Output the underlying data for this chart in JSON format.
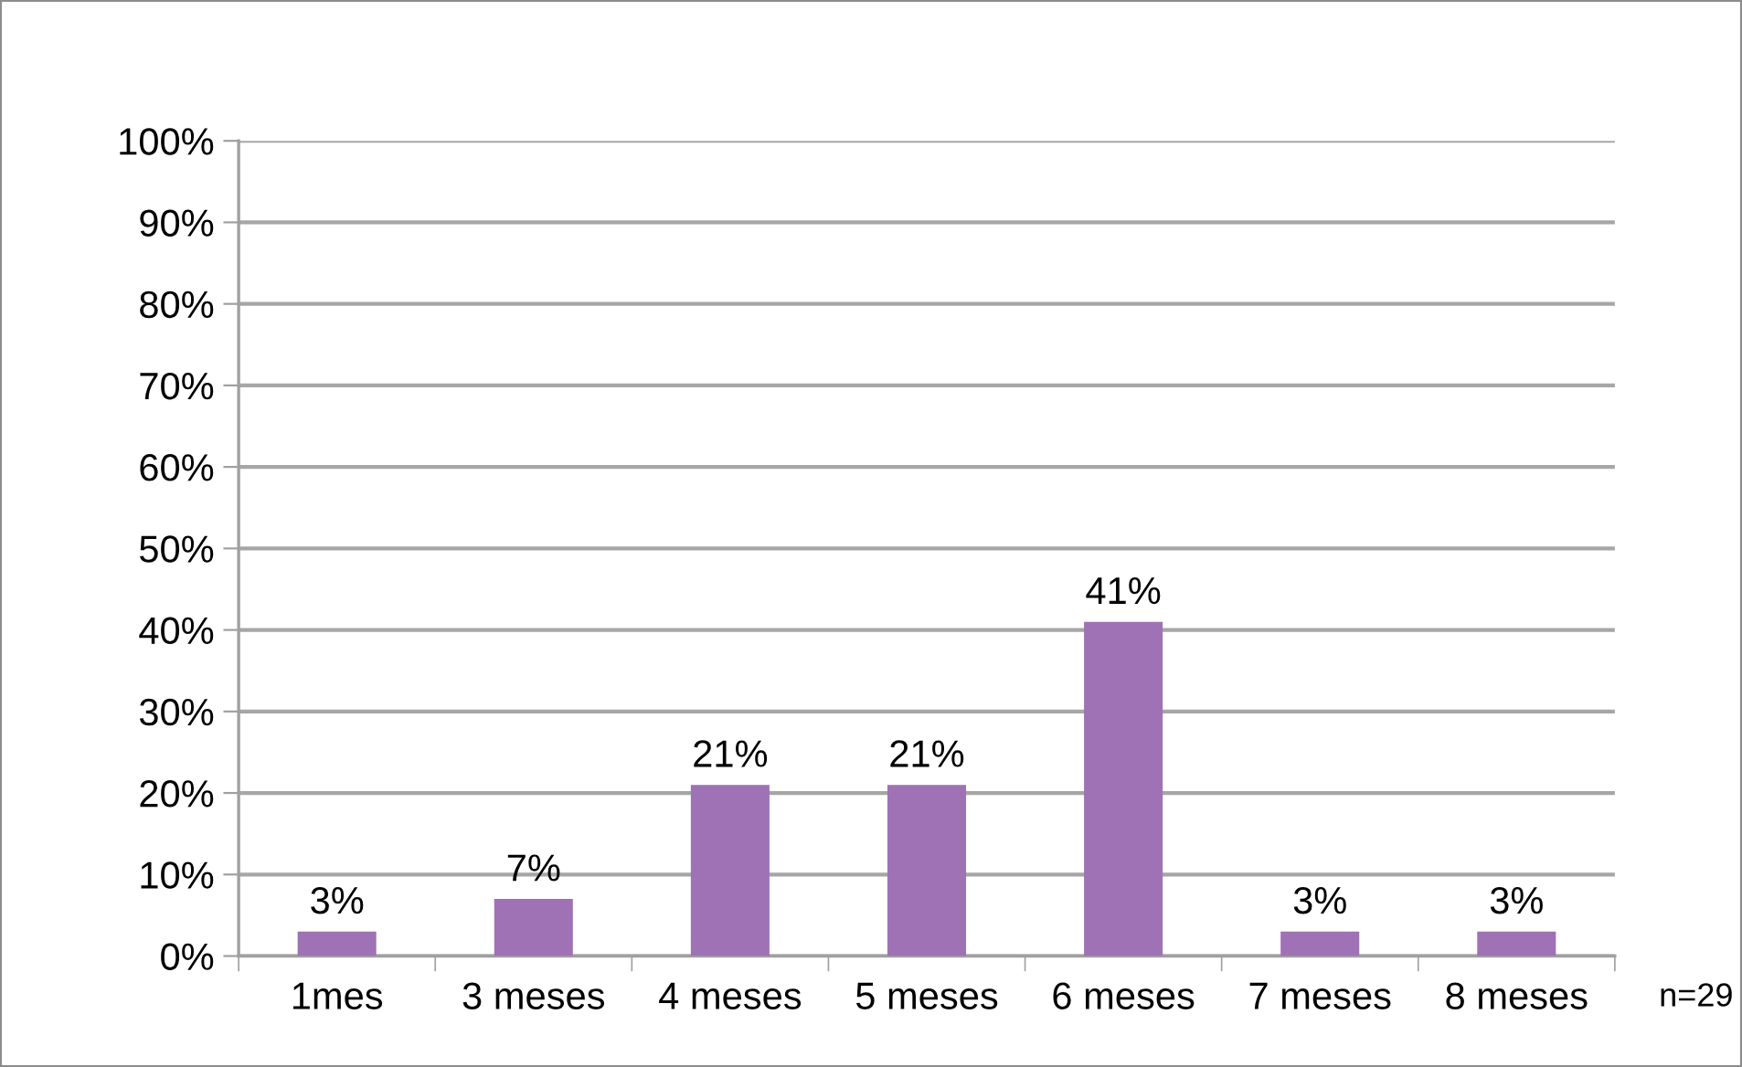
{
  "chart_data": {
    "type": "bar",
    "categories": [
      "1mes",
      "3 meses",
      "4 meses",
      "5 meses",
      "6 meses",
      "7 meses",
      "8 meses"
    ],
    "values": [
      3,
      7,
      21,
      21,
      41,
      3,
      3
    ],
    "value_labels": [
      "3%",
      "7%",
      "21%",
      "21%",
      "41%",
      "3%",
      "3%"
    ],
    "color": "#9e72b4",
    "ylim": [
      0,
      100
    ],
    "yticks": [
      {
        "value": 0,
        "label": "0%"
      },
      {
        "value": 10,
        "label": "10%"
      },
      {
        "value": 20,
        "label": "20%"
      },
      {
        "value": 30,
        "label": "30%"
      },
      {
        "value": 40,
        "label": "40%"
      },
      {
        "value": 50,
        "label": "50%"
      },
      {
        "value": 60,
        "label": "60%"
      },
      {
        "value": 70,
        "label": "70%"
      },
      {
        "value": 80,
        "label": "80%"
      },
      {
        "value": 90,
        "label": "90%"
      },
      {
        "value": 100,
        "label": "100%"
      }
    ],
    "grid": "y",
    "annotations": [
      "n=29"
    ]
  }
}
